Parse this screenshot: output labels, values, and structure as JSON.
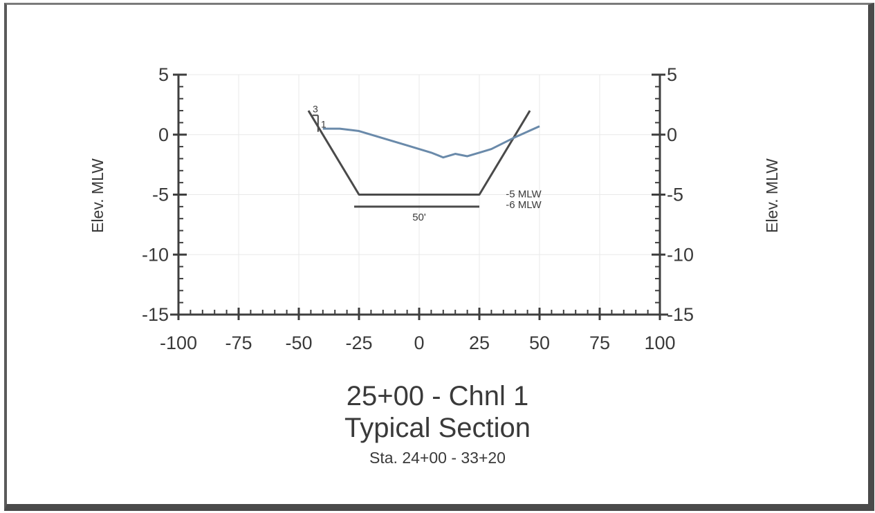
{
  "chart_data": {
    "type": "line",
    "title": "25+00 - Chnl 1",
    "subtitle": "Typical Section",
    "station_range": "Sta. 24+00 - 33+20",
    "ylabel_left": "Elev. MLW",
    "ylabel_right": "Elev. MLW",
    "xlim": [
      -100,
      100
    ],
    "ylim": [
      -15,
      5
    ],
    "x_ticks": [
      "-100",
      "-75",
      "-50",
      "-25",
      "0",
      "25",
      "50",
      "75",
      "100"
    ],
    "y_ticks": [
      "5",
      "0",
      "-5",
      "-10",
      "-15"
    ],
    "grid": true,
    "series": [
      {
        "label": "",
        "color": "#4a4a4a",
        "x": [
          -46,
          -25,
          25,
          46
        ],
        "y": [
          2,
          -5,
          -5,
          2
        ]
      },
      {
        "label": "",
        "color": "#6a8aaa",
        "x": [
          -40,
          -33,
          -25,
          -15,
          -5,
          5,
          10,
          15,
          20,
          25,
          30,
          40,
          50
        ],
        "y": [
          0.5,
          0.5,
          0.3,
          -0.3,
          -0.9,
          -1.5,
          -1.9,
          -1.6,
          -1.8,
          -1.5,
          -1.2,
          -0.2,
          0.7
        ]
      }
    ],
    "overdredge_line": {
      "x": [
        -27,
        25
      ],
      "y": -6
    },
    "annotations": {
      "slope_rise": "1",
      "slope_run": "3",
      "design_depth": "-5 MLW",
      "overdepth": "-6 MLW",
      "bottom_width": "50'"
    }
  }
}
